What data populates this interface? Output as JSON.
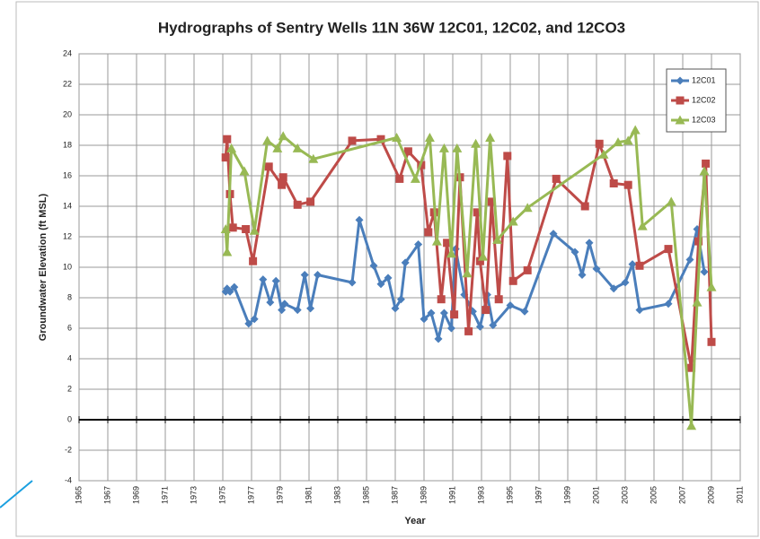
{
  "chart_data": {
    "type": "line",
    "title": "Hydrographs of Sentry Wells 11N 36W 12C01, 12C02, and 12CO3",
    "x_label": "Year",
    "y_label": "Groundwater Elevation (ft MSL)",
    "xlim": [
      1965,
      2011
    ],
    "xticks": [
      1965,
      1967,
      1969,
      1971,
      1973,
      1975,
      1977,
      1979,
      1981,
      1983,
      1985,
      1987,
      1989,
      1991,
      1993,
      1995,
      1997,
      1999,
      2001,
      2003,
      2005,
      2007,
      2009,
      2011
    ],
    "ylim": [
      -4,
      24
    ],
    "yticks": [
      -4,
      -2,
      0,
      2,
      4,
      6,
      8,
      10,
      12,
      14,
      16,
      18,
      20,
      22,
      24
    ],
    "grid": true,
    "legend": "upper right",
    "series": [
      {
        "name": "12C01",
        "color": "#4a7ebb",
        "marker": "diamond",
        "x": [
          1975.2,
          1975.3,
          1975.5,
          1975.8,
          1976.8,
          1977.2,
          1977.8,
          1978.3,
          1978.7,
          1979.1,
          1979.3,
          1980.2,
          1980.7,
          1981.1,
          1981.6,
          1984.0,
          1984.5,
          1985.5,
          1986.0,
          1986.5,
          1987.0,
          1987.4,
          1987.7,
          1988.6,
          1989.0,
          1989.5,
          1990.0,
          1990.4,
          1990.9,
          1991.2,
          1991.8,
          1992.4,
          1992.9,
          1993.4,
          1993.8,
          1995.0,
          1996.0,
          1998.0,
          1999.5,
          2000.0,
          2000.5,
          2001.0,
          2002.2,
          2003.0,
          2003.5,
          2004.0,
          2006.0,
          2007.5,
          2008.0,
          2008.5
        ],
        "values": [
          8.4,
          8.6,
          8.4,
          8.7,
          6.3,
          6.6,
          9.2,
          7.7,
          9.1,
          7.2,
          7.6,
          7.2,
          9.5,
          7.3,
          9.5,
          9.0,
          13.1,
          10.1,
          8.9,
          9.3,
          7.3,
          7.9,
          10.3,
          11.5,
          6.6,
          7.0,
          5.3,
          7.0,
          6.0,
          11.2,
          8.2,
          7.1,
          6.1,
          8.2,
          6.2,
          7.5,
          7.1,
          12.2,
          11.0,
          9.5,
          11.6,
          9.9,
          8.6,
          9.0,
          10.2,
          7.2,
          7.6,
          10.5,
          12.5,
          9.7
        ]
      },
      {
        "name": "12C02",
        "color": "#be4b48",
        "marker": "square",
        "x": [
          1975.2,
          1975.3,
          1975.5,
          1975.7,
          1976.6,
          1977.1,
          1978.2,
          1979.1,
          1979.2,
          1980.2,
          1981.1,
          1984.0,
          1986.0,
          1987.3,
          1987.9,
          1988.8,
          1989.3,
          1989.7,
          1990.2,
          1990.6,
          1991.1,
          1991.5,
          1992.1,
          1992.7,
          1992.9,
          1993.3,
          1993.7,
          1994.2,
          1994.8,
          1995.2,
          1996.2,
          1998.2,
          2000.2,
          2001.2,
          2002.2,
          2003.2,
          2004.0,
          2006.0,
          2007.6,
          2008.1,
          2008.6,
          2009.0
        ],
        "values": [
          17.2,
          18.4,
          14.8,
          12.6,
          12.5,
          10.4,
          16.6,
          15.4,
          15.9,
          14.1,
          14.3,
          18.3,
          18.4,
          15.8,
          17.6,
          16.7,
          12.3,
          13.6,
          7.9,
          11.6,
          6.9,
          15.9,
          5.8,
          13.6,
          10.4,
          7.2,
          14.3,
          7.9,
          17.3,
          9.1,
          9.8,
          15.8,
          14.0,
          18.1,
          15.5,
          15.4,
          10.1,
          11.2,
          3.4,
          11.7,
          16.8,
          5.1
        ]
      },
      {
        "name": "12C03",
        "color": "#98b954",
        "marker": "triangle",
        "x": [
          1975.2,
          1975.3,
          1975.6,
          1976.5,
          1977.2,
          1978.1,
          1978.8,
          1979.2,
          1980.2,
          1981.3,
          1987.1,
          1988.4,
          1989.4,
          1989.9,
          1990.4,
          1990.9,
          1991.3,
          1992.0,
          1992.6,
          1993.1,
          1993.6,
          1994.1,
          1995.2,
          1996.2,
          2001.5,
          2002.5,
          2003.2,
          2003.7,
          2004.2,
          2006.2,
          2007.6,
          2008.0,
          2008.5,
          2009.0
        ],
        "values": [
          12.5,
          11.0,
          17.8,
          16.3,
          12.4,
          18.3,
          17.8,
          18.6,
          17.8,
          17.1,
          18.5,
          15.8,
          18.5,
          11.7,
          17.8,
          10.9,
          17.8,
          9.6,
          18.1,
          10.7,
          18.5,
          11.8,
          13.0,
          13.9,
          17.4,
          18.2,
          18.3,
          19.0,
          12.7,
          14.3,
          -0.4,
          7.7,
          16.3,
          8.7
        ]
      }
    ]
  }
}
